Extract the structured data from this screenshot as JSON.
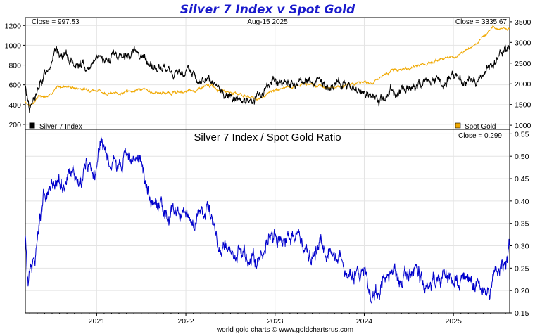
{
  "chart_data": [
    {
      "type": "line",
      "title": "Silver 7 Index v Spot Gold",
      "date_label": "Aug-15  2025",
      "left_close_label": "Close = 997.53",
      "right_close_label": "Close = 3335.67",
      "x_range": [
        2020.2,
        2025.63
      ],
      "x_ticks": [
        2021,
        2022,
        2023,
        2024,
        2025
      ],
      "x_tick_labels": [
        "2021",
        "2022",
        "2023",
        "2024",
        "2025"
      ],
      "y_left": {
        "range": [
          150,
          1280
        ],
        "ticks": [
          200,
          400,
          600,
          800,
          1000,
          1200
        ],
        "tick_labels": [
          "200",
          "400",
          "600",
          "800",
          "1000",
          "1200"
        ]
      },
      "y_right": {
        "range": [
          900,
          3600
        ],
        "ticks": [
          1000,
          1500,
          2000,
          2500,
          3000,
          3500
        ],
        "tick_labels": [
          "1000",
          "1500",
          "2000",
          "2500",
          "3000",
          "3500"
        ]
      },
      "series": [
        {
          "name": "Silver 7 Index",
          "axis": "left",
          "color": "#000000",
          "x": [
            2020.2,
            2020.25,
            2020.3,
            2020.36,
            2020.42,
            2020.5,
            2020.56,
            2020.62,
            2020.7,
            2020.8,
            2020.9,
            2021.0,
            2021.1,
            2021.2,
            2021.3,
            2021.4,
            2021.45,
            2021.5,
            2021.6,
            2021.7,
            2021.8,
            2021.9,
            2022.0,
            2022.1,
            2022.2,
            2022.3,
            2022.4,
            2022.5,
            2022.6,
            2022.7,
            2022.8,
            2022.9,
            2023.0,
            2023.1,
            2023.2,
            2023.3,
            2023.4,
            2023.5,
            2023.6,
            2023.7,
            2023.8,
            2023.9,
            2024.0,
            2024.1,
            2024.15,
            2024.2,
            2024.3,
            2024.4,
            2024.5,
            2024.6,
            2024.7,
            2024.8,
            2024.9,
            2025.0,
            2025.1,
            2025.2,
            2025.3,
            2025.4,
            2025.45,
            2025.5,
            2025.55,
            2025.6,
            2025.63
          ],
          "values": [
            560,
            380,
            450,
            570,
            710,
            880,
            930,
            880,
            850,
            810,
            780,
            870,
            820,
            900,
            880,
            930,
            950,
            900,
            790,
            760,
            730,
            700,
            740,
            700,
            650,
            580,
            520,
            500,
            480,
            440,
            480,
            570,
            650,
            610,
            580,
            620,
            640,
            600,
            560,
            650,
            610,
            540,
            520,
            470,
            420,
            450,
            560,
            520,
            600,
            590,
            660,
            630,
            620,
            700,
            630,
            650,
            630,
            780,
            790,
            870,
            890,
            920,
            997.53
          ]
        },
        {
          "name": "Spot Gold",
          "axis": "right",
          "color": "#f0a800",
          "x": [
            2020.2,
            2020.25,
            2020.35,
            2020.45,
            2020.55,
            2020.65,
            2020.75,
            2020.9,
            2021.0,
            2021.1,
            2021.2,
            2021.4,
            2021.5,
            2021.6,
            2021.8,
            2022.0,
            2022.1,
            2022.2,
            2022.3,
            2022.4,
            2022.5,
            2022.6,
            2022.7,
            2022.8,
            2022.9,
            2023.0,
            2023.1,
            2023.2,
            2023.3,
            2023.4,
            2023.5,
            2023.6,
            2023.7,
            2023.8,
            2023.9,
            2024.0,
            2024.1,
            2024.2,
            2024.3,
            2024.4,
            2024.5,
            2024.6,
            2024.7,
            2024.8,
            2024.9,
            2025.0,
            2025.1,
            2025.2,
            2025.3,
            2025.4,
            2025.45,
            2025.5,
            2025.55,
            2025.6,
            2025.63
          ],
          "values": [
            1580,
            1470,
            1700,
            1730,
            1900,
            1950,
            1900,
            1870,
            1860,
            1780,
            1760,
            1830,
            1880,
            1800,
            1780,
            1800,
            1830,
            1920,
            1950,
            1850,
            1790,
            1760,
            1680,
            1640,
            1720,
            1850,
            1900,
            1930,
            1990,
            2000,
            1960,
            1930,
            1920,
            1950,
            2010,
            2050,
            2020,
            2200,
            2320,
            2350,
            2360,
            2450,
            2500,
            2550,
            2650,
            2640,
            2760,
            2890,
            3020,
            3300,
            3380,
            3330,
            3350,
            3340,
            3335.67
          ]
        }
      ],
      "legend": [
        "Silver 7 Index",
        "Spot Gold"
      ],
      "legend_placement": "bottom"
    },
    {
      "type": "line",
      "title": "Silver 7 Index  /  Spot Gold Ratio",
      "close_label": "Close = 0.299",
      "x_range": [
        2020.2,
        2025.63
      ],
      "y_right": {
        "range": [
          0.15,
          0.56
        ],
        "ticks": [
          0.15,
          0.2,
          0.25,
          0.3,
          0.35,
          0.4,
          0.45,
          0.5,
          0.55
        ],
        "tick_labels": [
          "0.15",
          "0.20",
          "0.25",
          "0.30",
          "0.35",
          "0.40",
          "0.45",
          "0.50",
          "0.55"
        ]
      },
      "series": [
        {
          "name": "Silver 7 Index / Spot Gold Ratio",
          "color": "#0000cc",
          "x": [
            2020.2,
            2020.23,
            2020.26,
            2020.3,
            2020.35,
            2020.4,
            2020.45,
            2020.5,
            2020.55,
            2020.6,
            2020.7,
            2020.8,
            2020.9,
            2021.0,
            2021.05,
            2021.1,
            2021.15,
            2021.2,
            2021.25,
            2021.3,
            2021.4,
            2021.45,
            2021.5,
            2021.55,
            2021.6,
            2021.7,
            2021.8,
            2021.9,
            2022.0,
            2022.05,
            2022.1,
            2022.15,
            2022.2,
            2022.25,
            2022.3,
            2022.35,
            2022.4,
            2022.5,
            2022.6,
            2022.7,
            2022.8,
            2022.9,
            2023.0,
            2023.1,
            2023.15,
            2023.2,
            2023.3,
            2023.4,
            2023.5,
            2023.6,
            2023.7,
            2023.8,
            2023.9,
            2024.0,
            2024.05,
            2024.1,
            2024.15,
            2024.2,
            2024.3,
            2024.4,
            2024.5,
            2024.6,
            2024.7,
            2024.8,
            2024.9,
            2025.0,
            2025.1,
            2025.2,
            2025.3,
            2025.35,
            2025.4,
            2025.45,
            2025.5,
            2025.55,
            2025.6,
            2025.63
          ],
          "values": [
            0.32,
            0.22,
            0.26,
            0.28,
            0.33,
            0.39,
            0.41,
            0.45,
            0.42,
            0.44,
            0.46,
            0.43,
            0.48,
            0.47,
            0.52,
            0.5,
            0.47,
            0.5,
            0.48,
            0.49,
            0.49,
            0.5,
            0.48,
            0.44,
            0.42,
            0.38,
            0.36,
            0.37,
            0.38,
            0.35,
            0.36,
            0.38,
            0.37,
            0.4,
            0.36,
            0.32,
            0.28,
            0.29,
            0.28,
            0.25,
            0.28,
            0.31,
            0.33,
            0.32,
            0.31,
            0.32,
            0.31,
            0.27,
            0.3,
            0.28,
            0.26,
            0.25,
            0.24,
            0.25,
            0.21,
            0.19,
            0.2,
            0.23,
            0.24,
            0.25,
            0.22,
            0.24,
            0.23,
            0.22,
            0.23,
            0.22,
            0.21,
            0.22,
            0.21,
            0.2,
            0.22,
            0.24,
            0.25,
            0.26,
            0.27,
            0.299
          ]
        }
      ]
    }
  ],
  "footer": "world gold charts © www.goldchartsrus.com"
}
